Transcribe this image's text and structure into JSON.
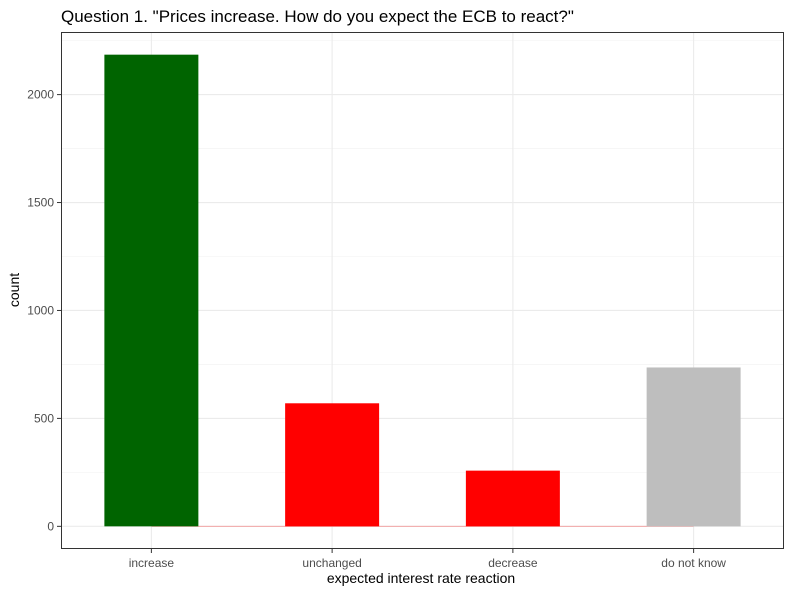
{
  "chart_data": {
    "type": "bar",
    "title": "Question 1. \"Prices increase. How do you expect the ECB to react?\"",
    "xlabel": "expected interest rate reaction",
    "ylabel": "count",
    "categories": [
      "increase",
      "unchanged",
      "decrease",
      "do not know"
    ],
    "values": [
      2185,
      570,
      258,
      736
    ],
    "colors": [
      "#006400",
      "#FF0000",
      "#FF0000",
      "#BEBEBE"
    ],
    "ylim": [
      -105,
      2290
    ],
    "yticks": [
      0,
      500,
      1000,
      1500,
      2000
    ],
    "grid": true,
    "legend": "none",
    "baseline_color": "#FF0000"
  }
}
